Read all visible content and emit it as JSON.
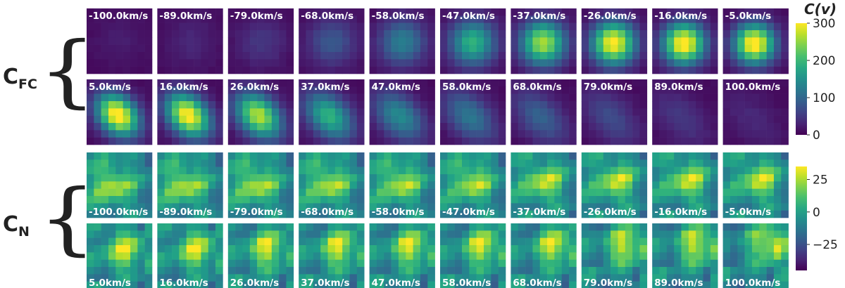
{
  "chart_data": {
    "type": "heatmap",
    "groups": [
      {
        "label_main": "C",
        "label_sub": "FC",
        "velocities_row1": [
          "-100.0km/s",
          "-89.0km/s",
          "-79.0km/s",
          "-68.0km/s",
          "-58.0km/s",
          "-47.0km/s",
          "-37.0km/s",
          "-26.0km/s",
          "-16.0km/s",
          "-5.0km/s"
        ],
        "velocities_row2": [
          "5.0km/s",
          "16.0km/s",
          "26.0km/s",
          "37.0km/s",
          "47.0km/s",
          "58.0km/s",
          "68.0km/s",
          "79.0km/s",
          "89.0km/s",
          "100.0km/s"
        ],
        "peak_values_row1": [
          15,
          25,
          40,
          75,
          120,
          185,
          255,
          300,
          310,
          310
        ],
        "peak_values_row2": [
          310,
          300,
          260,
          185,
          135,
          110,
          85,
          60,
          40,
          25
        ],
        "colorbar": {
          "title": "C(v)",
          "range": [
            0,
            300
          ],
          "ticks": [
            "300",
            "200",
            "100",
            "0"
          ],
          "tick_values": [
            300,
            200,
            100,
            0
          ]
        }
      },
      {
        "label_main": "C",
        "label_sub": "N",
        "velocities_row1": [
          "-100.0km/s",
          "-89.0km/s",
          "-79.0km/s",
          "-68.0km/s",
          "-58.0km/s",
          "-47.0km/s",
          "-37.0km/s",
          "-26.0km/s",
          "-16.0km/s",
          "-5.0km/s"
        ],
        "velocities_row2": [
          "5.0km/s",
          "16.0km/s",
          "26.0km/s",
          "37.0km/s",
          "47.0km/s",
          "58.0km/s",
          "68.0km/s",
          "79.0km/s",
          "89.0km/s",
          "100.0km/s"
        ],
        "colorbar": {
          "title": "",
          "range": [
            -45,
            35
          ],
          "ticks": [
            "25",
            "0",
            "−25"
          ],
          "tick_values": [
            25,
            0,
            -25
          ]
        }
      }
    ],
    "colormap": "viridis"
  }
}
